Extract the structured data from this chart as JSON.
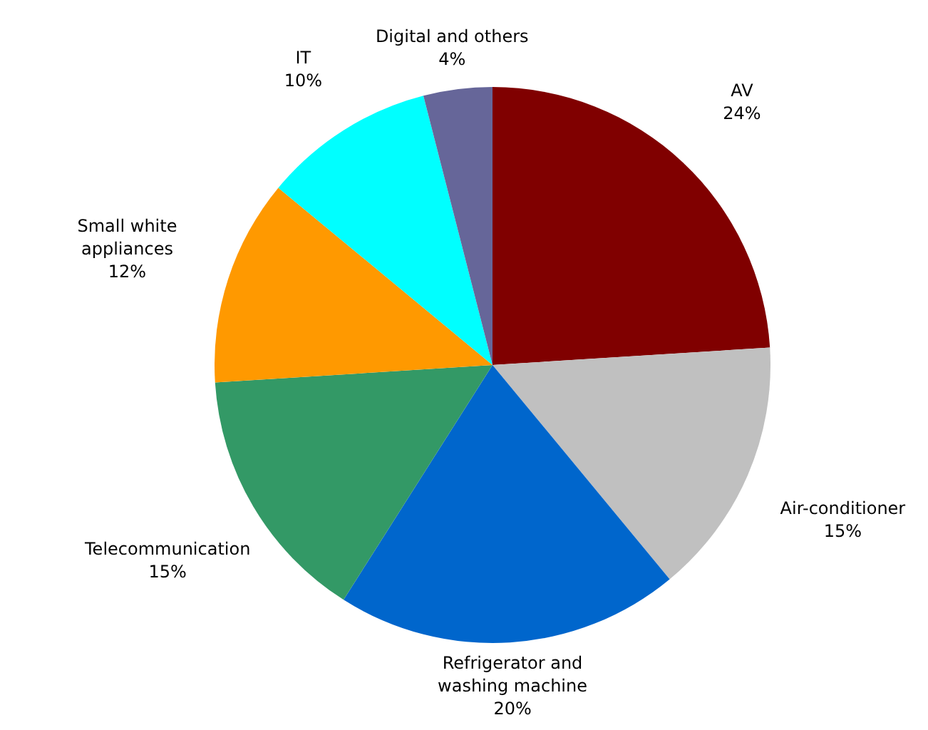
{
  "chart_data": {
    "type": "pie",
    "categories": [
      "AV",
      "Air-conditioner",
      "Refrigerator and washing machine",
      "Telecommunication",
      "Small white appliances",
      "IT",
      "Digital and others"
    ],
    "values": [
      24,
      15,
      20,
      15,
      12,
      10,
      4
    ],
    "value_labels": [
      "24%",
      "15%",
      "20%",
      "15%",
      "12%",
      "10%",
      "4%"
    ],
    "colors": [
      "#800000",
      "#c0c0c0",
      "#0066cc",
      "#339966",
      "#ff9900",
      "#00ffff",
      "#666699"
    ]
  }
}
